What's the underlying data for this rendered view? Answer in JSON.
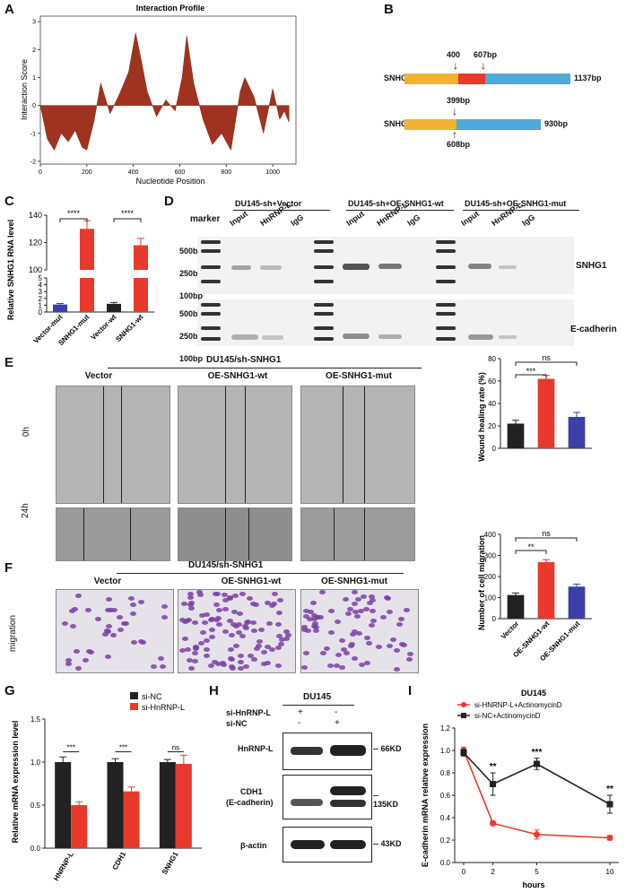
{
  "panels": {
    "A": "A",
    "B": "B",
    "C": "C",
    "D": "D",
    "E": "E",
    "F": "F",
    "G": "G",
    "H": "H",
    "I": "I"
  },
  "panelA": {
    "title": "Interaction Profile",
    "xlabel": "Nucleotide Position",
    "ylabel": "Interaction Score",
    "xticks": [
      "0",
      "200",
      "400",
      "600",
      "800",
      "1000"
    ],
    "yticks": [
      "-2",
      "-1",
      "0",
      "1",
      "2",
      "3"
    ]
  },
  "panelB": {
    "wt_label": "SNHG1-wt",
    "wt_len": "1137bp",
    "wt_mark1": "400",
    "wt_mark2": "607bp",
    "mut_label": "SNHG1-mut",
    "mut_len": "930bp",
    "mut_mark1": "399bp",
    "mut_mark2": "608bp",
    "colors": {
      "left": "#f2b233",
      "mid": "#e8392c",
      "right": "#4ea9d8"
    }
  },
  "panelC": {
    "ylabel": "Relative SNHG1 RNA level",
    "yticks_top": [
      "100",
      "120",
      "140"
    ],
    "yticks_bottom": [
      "0",
      "1",
      "2",
      "3",
      "4",
      "5"
    ],
    "sig1": "****",
    "sig2": "****"
  },
  "panelD": {
    "marker": "marker",
    "groups": [
      "DU145-sh+Vector",
      "DU145-sh+OE-SNHG1-wt",
      "DU145-sh+OE-SNHG1-mut"
    ],
    "lanes": [
      "Input",
      "HnRNP-L",
      "IgG"
    ],
    "sizes_top": [
      "500bp",
      "250bp",
      "100bp"
    ],
    "sizes_bottom": [
      "500bp",
      "250bp",
      "100bp"
    ],
    "row_top": "SNHG1",
    "row_bottom": "E-cadherin"
  },
  "panelE": {
    "header": "DU145/sh-SNHG1",
    "cols": [
      "Vector",
      "OE-SNHG1-wt",
      "OE-SNHG1-mut"
    ],
    "rows": [
      "0h",
      "24h"
    ],
    "wound_ylabel": "Wound healing rate (%)",
    "wound_yticks": [
      "0",
      "20",
      "40",
      "60",
      "80"
    ],
    "wound_sig1": "***",
    "wound_sig2": "ns",
    "mig_ylabel": "Number of cell migration",
    "mig_yticks": [
      "0",
      "100",
      "200",
      "300",
      "400"
    ],
    "mig_sig1": "**",
    "mig_sig2": "ns",
    "xcats": [
      "Vector",
      "OE-SNHG1-wt",
      "OE-SNHG1-mut"
    ]
  },
  "panelF": {
    "header": "DU145/sh-SNHG1",
    "cols": [
      "Vector",
      "OE-SNHG1-wt",
      "OE-SNHG1-mut"
    ],
    "row": "migration"
  },
  "panelG": {
    "ylabel": "Relative mRNA expression level",
    "yticks": [
      "0.0",
      "0.5",
      "1.0",
      "1.5"
    ],
    "legend": [
      "si-NC",
      "si-HnRNP-L"
    ],
    "sig": [
      "***",
      "***",
      "ns"
    ]
  },
  "panelH": {
    "title": "DU145",
    "row1": "si-HnRNP-L",
    "row2": "si-NC",
    "row1_vals": [
      "+",
      "-"
    ],
    "row2_vals": [
      "-",
      "+"
    ],
    "blots": [
      "HnRNP-L",
      "CDH1\n(E-cadherin)",
      "β-actin"
    ],
    "blot1": "HnRNP-L",
    "blot2a": "CDH1",
    "blot2b": "(E-cadherin)",
    "blot3": "β-actin",
    "sizes": [
      "-- 66KD",
      "-- 135KD",
      "-- 43KD"
    ]
  },
  "panelI": {
    "title": "DU145",
    "xlabel": "hours",
    "ylabel": "E-cadherin mRNA relative expression",
    "xticks": [
      "0",
      "2",
      "5",
      "10"
    ],
    "yticks": [
      "0.0",
      "0.2",
      "0.4",
      "0.6",
      "0.8",
      "1.0",
      "1.2"
    ],
    "legend": [
      "si-HNRNP-L+ActinomycinD",
      "si-NC+ActinomycinD"
    ],
    "sig": [
      "**",
      "***",
      "**"
    ]
  },
  "chart_data": [
    {
      "id": "A",
      "type": "area",
      "x": [
        0,
        30,
        60,
        90,
        120,
        150,
        180,
        200,
        230,
        260,
        300,
        340,
        380,
        410,
        430,
        460,
        500,
        540,
        580,
        610,
        630,
        660,
        700,
        740,
        780,
        820,
        860,
        880,
        920,
        960,
        1000,
        1030,
        1050,
        1070
      ],
      "y": [
        0,
        -1.2,
        -1.6,
        -1.0,
        -1.3,
        -0.9,
        -1.5,
        -1.6,
        -0.6,
        0.8,
        -0.3,
        0.4,
        1.2,
        2.6,
        1.8,
        0.5,
        -0.4,
        0.2,
        -0.2,
        1.0,
        2.5,
        0.8,
        -0.5,
        -1.4,
        -1.0,
        -1.6,
        0.5,
        1.0,
        0.3,
        -1.0,
        0.6,
        -0.5,
        -0.2,
        -0.6
      ],
      "xlim": [
        0,
        1100
      ],
      "ylim": [
        -2.1,
        3.2
      ],
      "title": "Interaction Profile",
      "xlabel": "Nucleotide Position",
      "ylabel": "Interaction Score"
    },
    {
      "id": "C",
      "type": "bar",
      "categories": [
        "Vector-mut",
        "SNHG1-mut",
        "Vector-wt",
        "SNHG1-wt"
      ],
      "values": [
        1.1,
        130,
        1.2,
        118
      ],
      "errors": [
        0.15,
        6,
        0.2,
        5
      ],
      "colors": [
        "#3b3fa8",
        "#e8392c",
        "#222222",
        "#e8392c"
      ],
      "ylabel": "Relative SNHG1 RNA level"
    },
    {
      "id": "E-wound",
      "type": "bar",
      "categories": [
        "Vector",
        "OE-SNHG1-wt",
        "OE-SNHG1-mut"
      ],
      "values": [
        22,
        62,
        28
      ],
      "errors": [
        3,
        3,
        4
      ],
      "colors": [
        "#222222",
        "#e8392c",
        "#3b3fa8"
      ],
      "ylim": [
        0,
        80
      ],
      "ylabel": "Wound healing rate (%)"
    },
    {
      "id": "E-migration",
      "type": "bar",
      "categories": [
        "Vector",
        "OE-SNHG1-wt",
        "OE-SNHG1-mut"
      ],
      "values": [
        112,
        268,
        152
      ],
      "errors": [
        10,
        12,
        12
      ],
      "colors": [
        "#222222",
        "#e8392c",
        "#3b3fa8"
      ],
      "ylim": [
        0,
        400
      ],
      "ylabel": "Number of cell migration"
    },
    {
      "id": "G",
      "type": "bar",
      "categories": [
        "HNRNP-L",
        "CDH1",
        "SNHG1"
      ],
      "series": [
        {
          "name": "si-NC",
          "values": [
            1.0,
            1.0,
            1.0
          ],
          "errors": [
            0.06,
            0.04,
            0.03
          ]
        },
        {
          "name": "si-HnRNP-L",
          "values": [
            0.5,
            0.66,
            0.98
          ],
          "errors": [
            0.04,
            0.05,
            0.1
          ]
        }
      ],
      "ylim": [
        0,
        1.5
      ],
      "ylabel": "Relative mRNA expression level"
    },
    {
      "id": "I",
      "type": "line",
      "x": [
        0,
        2,
        5,
        10
      ],
      "series": [
        {
          "name": "si-HNRNP-L+ActinomycinD",
          "values": [
            1.0,
            0.35,
            0.25,
            0.22
          ],
          "errors": [
            0.03,
            0.02,
            0.04,
            0.02
          ]
        },
        {
          "name": "si-NC+ActinomycinD",
          "values": [
            0.98,
            0.7,
            0.88,
            0.52
          ],
          "errors": [
            0.03,
            0.1,
            0.05,
            0.08
          ]
        }
      ],
      "ylim": [
        0,
        1.2
      ],
      "xlabel": "hours",
      "ylabel": "E-cadherin mRNA relative expression"
    }
  ]
}
